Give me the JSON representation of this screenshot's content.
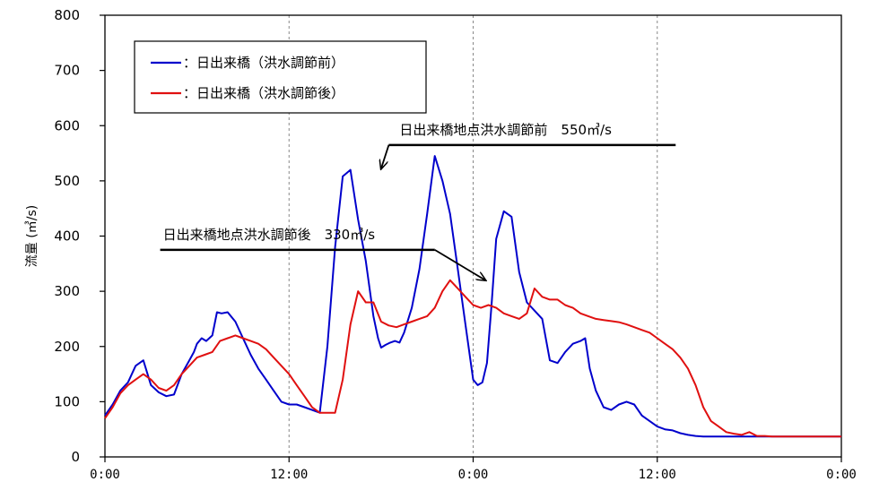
{
  "chart_data": {
    "type": "line",
    "ylabel": "流量 (㎥/s)",
    "ylim": [
      0,
      800
    ],
    "yticks": [
      "0",
      "100",
      "200",
      "300",
      "400",
      "500",
      "600",
      "700",
      "800"
    ],
    "xlim": [
      0,
      48
    ],
    "xticks": [
      {
        "x": 0,
        "label": "0:00"
      },
      {
        "x": 12,
        "label": "12:00"
      },
      {
        "x": 24,
        "label": "0:00"
      },
      {
        "x": 36,
        "label": "12:00"
      },
      {
        "x": 48,
        "label": "0:00"
      }
    ],
    "grid": "vertical dashed",
    "legend_position": "top-left",
    "series": [
      {
        "name": "：日出来橋（洪水調節前）",
        "color": "#0000cc",
        "x": [
          0,
          0.5,
          1,
          1.5,
          2,
          2.5,
          3,
          3.5,
          4,
          4.5,
          5,
          5.5,
          5.8,
          6,
          6.3,
          6.6,
          7,
          7.3,
          7.6,
          8,
          8.5,
          9,
          9.5,
          10,
          10.5,
          11,
          11.5,
          12,
          12.5,
          13,
          13.5,
          14,
          14.5,
          15,
          15.5,
          16,
          16.5,
          17,
          17.5,
          17.8,
          18,
          18.3,
          18.6,
          18.9,
          19.2,
          19.5,
          20,
          20.5,
          21,
          21.5,
          22,
          22.5,
          23,
          23.5,
          24,
          24.3,
          24.6,
          24.9,
          25.2,
          25.5,
          26,
          26.5,
          27,
          27.5,
          28,
          28.5,
          29,
          29.5,
          30,
          30.5,
          31,
          31.3,
          31.6,
          32,
          32.5,
          33,
          33.5,
          34,
          34.5,
          35,
          35.5,
          36,
          36.5,
          37,
          37.5,
          38,
          38.5,
          39,
          39.5,
          40,
          40.5,
          41,
          41.5,
          42,
          42.5,
          43,
          43.5,
          44,
          44.5,
          45,
          45.5,
          46,
          46.5,
          47,
          47.5,
          48
        ],
        "y": [
          75,
          95,
          120,
          135,
          165,
          175,
          130,
          117,
          110,
          113,
          150,
          175,
          190,
          205,
          215,
          210,
          220,
          262,
          260,
          262,
          245,
          215,
          185,
          160,
          140,
          120,
          100,
          95,
          95,
          90,
          85,
          80,
          200,
          380,
          508,
          520,
          430,
          355,
          255,
          215,
          198,
          203,
          207,
          210,
          207,
          225,
          270,
          340,
          440,
          545,
          500,
          440,
          340,
          240,
          140,
          130,
          135,
          170,
          275,
          395,
          445,
          435,
          335,
          280,
          265,
          250,
          175,
          170,
          190,
          205,
          210,
          215,
          160,
          120,
          90,
          85,
          95,
          100,
          95,
          75,
          65,
          55,
          50,
          48,
          43,
          40,
          38,
          37,
          37,
          37,
          37,
          37,
          37,
          37,
          37,
          37,
          37,
          37,
          37,
          37,
          37,
          37,
          37,
          37,
          37,
          37
        ]
      },
      {
        "name": "：日出来橋（洪水調節後）",
        "color": "#e01010",
        "x": [
          0,
          0.5,
          1,
          1.5,
          2,
          2.5,
          3,
          3.5,
          4,
          4.5,
          5,
          5.5,
          6,
          6.5,
          7,
          7.5,
          8,
          8.5,
          9,
          9.5,
          10,
          10.5,
          11,
          11.5,
          12,
          12.5,
          13,
          13.5,
          14,
          14.5,
          15,
          15.5,
          16,
          16.5,
          17,
          17.5,
          18,
          18.5,
          19,
          19.5,
          20,
          20.5,
          21,
          21.5,
          22,
          22.5,
          23,
          23.5,
          24,
          24.5,
          25,
          25.5,
          26,
          26.5,
          27,
          27.5,
          28,
          28.5,
          29,
          29.5,
          30,
          30.5,
          31,
          31.5,
          32,
          32.5,
          33,
          33.5,
          34,
          34.5,
          35,
          35.5,
          36,
          36.5,
          37,
          37.5,
          38,
          38.5,
          39,
          39.5,
          40,
          40.5,
          41,
          41.5,
          42,
          42.5,
          43,
          43.5,
          44,
          44.5,
          45,
          45.5,
          46,
          46.5,
          47,
          47.5,
          48
        ],
        "y": [
          70,
          90,
          115,
          130,
          140,
          150,
          140,
          125,
          120,
          130,
          150,
          165,
          180,
          185,
          190,
          210,
          215,
          220,
          215,
          210,
          205,
          195,
          180,
          165,
          150,
          130,
          110,
          90,
          80,
          80,
          80,
          140,
          240,
          300,
          280,
          280,
          245,
          238,
          235,
          240,
          245,
          250,
          255,
          270,
          300,
          320,
          305,
          290,
          275,
          270,
          275,
          270,
          260,
          255,
          250,
          260,
          305,
          290,
          285,
          285,
          275,
          270,
          260,
          255,
          250,
          248,
          246,
          244,
          240,
          235,
          230,
          225,
          215,
          205,
          195,
          180,
          160,
          130,
          90,
          65,
          55,
          45,
          42,
          40,
          45,
          38,
          38,
          37,
          37,
          37,
          37,
          37,
          37,
          37,
          37,
          37,
          37
        ]
      }
    ],
    "annotations": [
      {
        "text": "日出来橋地点洪水調節前　550㎥/s",
        "target": {
          "x": 18.0,
          "y": 522
        },
        "line_y": 565,
        "line_x_start": 18.5,
        "line_x_end": 37.2
      },
      {
        "text": "日出来橋地点洪水調節後　330㎥/s",
        "target": {
          "x": 24.8,
          "y": 320
        },
        "line_y": 375,
        "line_x_start": 3.6,
        "line_x_end": 21.5
      }
    ]
  }
}
